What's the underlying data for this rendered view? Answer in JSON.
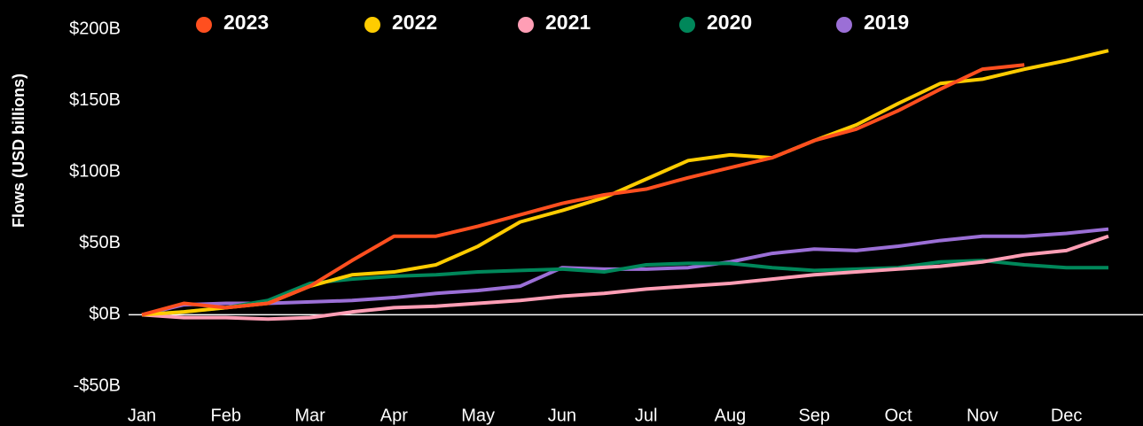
{
  "chart_data": {
    "type": "line",
    "y_axis_label": "Flows (USD billions)",
    "categories": [
      "Jan",
      null,
      "Feb",
      null,
      "Mar",
      null,
      "Apr",
      null,
      "May",
      null,
      "Jun",
      null,
      "Jul",
      null,
      "Aug",
      null,
      "Sep",
      null,
      "Oct",
      null,
      "Nov",
      null,
      "Dec",
      null
    ],
    "ylim": [
      -50,
      200
    ],
    "yticks": [
      {
        "value": -50,
        "label": "-$50B"
      },
      {
        "value": 0,
        "label": "$0B"
      },
      {
        "value": 50,
        "label": "$50B"
      },
      {
        "value": 100,
        "label": "$100B"
      },
      {
        "value": 150,
        "label": "$150B"
      },
      {
        "value": 200,
        "label": "$200B"
      }
    ],
    "zero_line": true,
    "series": [
      {
        "name": "2023",
        "color": "#ff4f1f",
        "values": [
          0,
          8,
          5,
          8,
          20,
          38,
          55,
          55,
          62,
          70,
          78,
          84,
          88,
          96,
          103,
          110,
          122,
          130,
          143,
          158,
          172,
          175,
          null,
          null
        ]
      },
      {
        "name": "2022",
        "color": "#ffcc00",
        "values": [
          0,
          2,
          5,
          8,
          20,
          28,
          30,
          35,
          48,
          65,
          73,
          82,
          95,
          108,
          112,
          110,
          122,
          133,
          148,
          162,
          165,
          172,
          178,
          185
        ]
      },
      {
        "name": "2021",
        "color": "#ff9eb5",
        "values": [
          0,
          -2,
          -2,
          -3,
          -2,
          2,
          5,
          6,
          8,
          10,
          13,
          15,
          18,
          20,
          22,
          25,
          28,
          30,
          32,
          34,
          37,
          42,
          45,
          55
        ]
      },
      {
        "name": "2020",
        "color": "#00875a",
        "values": [
          0,
          2,
          5,
          10,
          22,
          25,
          27,
          28,
          30,
          31,
          32,
          30,
          35,
          36,
          36,
          33,
          31,
          32,
          33,
          37,
          38,
          35,
          33,
          33
        ]
      },
      {
        "name": "2019",
        "color": "#9b6fd6",
        "values": [
          0,
          7,
          8,
          8,
          9,
          10,
          12,
          15,
          17,
          20,
          33,
          32,
          32,
          33,
          37,
          43,
          46,
          45,
          48,
          52,
          55,
          55,
          57,
          60
        ]
      }
    ]
  }
}
